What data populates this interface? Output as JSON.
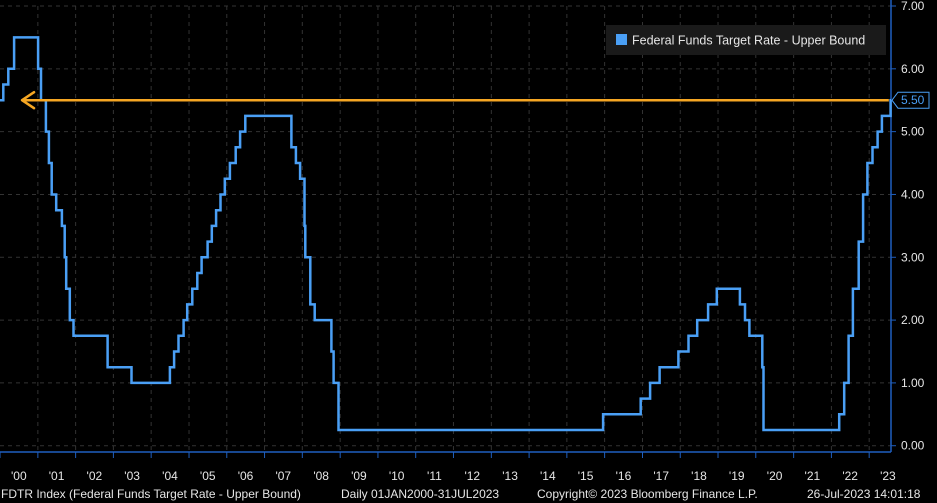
{
  "chart_data": {
    "type": "line",
    "title": "",
    "xlabel": "",
    "ylabel": "",
    "x_range": [
      "2000-01-01",
      "2023-07-31"
    ],
    "ylim": [
      -0.1,
      7.0
    ],
    "y_ticks": [
      "0.00",
      "1.00",
      "2.00",
      "3.00",
      "4.00",
      "5.00",
      "6.00",
      "7.00"
    ],
    "x_tick_labels": [
      {
        "label": "'00",
        "year": 2000
      },
      {
        "label": "'01",
        "year": 2001
      },
      {
        "label": "'02",
        "year": 2002
      },
      {
        "label": "'03",
        "year": 2003
      },
      {
        "label": "'04",
        "year": 2004
      },
      {
        "label": "'05",
        "year": 2005
      },
      {
        "label": "'06",
        "year": 2006
      },
      {
        "label": "'07",
        "year": 2007
      },
      {
        "label": "'08",
        "year": 2008
      },
      {
        "label": "'09",
        "year": 2009
      },
      {
        "label": "'10",
        "year": 2010
      },
      {
        "label": "'11",
        "year": 2011
      },
      {
        "label": "'12",
        "year": 2012
      },
      {
        "label": "'13",
        "year": 2013
      },
      {
        "label": "'14",
        "year": 2014
      },
      {
        "label": "'15",
        "year": 2015
      },
      {
        "label": "'16",
        "year": 2016
      },
      {
        "label": "'17",
        "year": 2017
      },
      {
        "label": "'18",
        "year": 2018
      },
      {
        "label": "'19",
        "year": 2019
      },
      {
        "label": "'20",
        "year": 2020
      },
      {
        "label": "'21",
        "year": 2021
      },
      {
        "label": "'22",
        "year": 2022
      },
      {
        "label": "'23",
        "year": 2023
      }
    ],
    "grid": "dashed-horizontal",
    "legend": {
      "position": "top-right",
      "entries": [
        "Federal Funds Target Rate - Upper Bound"
      ]
    },
    "series": [
      {
        "name": "Federal Funds Target Rate - Upper Bound",
        "color": "#4a9ff5",
        "step": true,
        "points": [
          {
            "date": "2000-01-01",
            "value": 5.5
          },
          {
            "date": "2000-02-02",
            "value": 5.75
          },
          {
            "date": "2000-03-21",
            "value": 6.0
          },
          {
            "date": "2000-05-16",
            "value": 6.5
          },
          {
            "date": "2001-01-03",
            "value": 6.0
          },
          {
            "date": "2001-01-31",
            "value": 5.5
          },
          {
            "date": "2001-03-20",
            "value": 5.0
          },
          {
            "date": "2001-04-18",
            "value": 4.5
          },
          {
            "date": "2001-05-15",
            "value": 4.0
          },
          {
            "date": "2001-06-27",
            "value": 3.75
          },
          {
            "date": "2001-08-21",
            "value": 3.5
          },
          {
            "date": "2001-09-17",
            "value": 3.0
          },
          {
            "date": "2001-10-02",
            "value": 2.5
          },
          {
            "date": "2001-11-06",
            "value": 2.0
          },
          {
            "date": "2001-12-11",
            "value": 1.75
          },
          {
            "date": "2002-11-06",
            "value": 1.25
          },
          {
            "date": "2003-06-25",
            "value": 1.0
          },
          {
            "date": "2004-06-30",
            "value": 1.25
          },
          {
            "date": "2004-08-10",
            "value": 1.5
          },
          {
            "date": "2004-09-21",
            "value": 1.75
          },
          {
            "date": "2004-11-10",
            "value": 2.0
          },
          {
            "date": "2004-12-14",
            "value": 2.25
          },
          {
            "date": "2005-02-02",
            "value": 2.5
          },
          {
            "date": "2005-03-22",
            "value": 2.75
          },
          {
            "date": "2005-05-03",
            "value": 3.0
          },
          {
            "date": "2005-06-30",
            "value": 3.25
          },
          {
            "date": "2005-08-09",
            "value": 3.5
          },
          {
            "date": "2005-09-20",
            "value": 3.75
          },
          {
            "date": "2005-11-01",
            "value": 4.0
          },
          {
            "date": "2005-12-13",
            "value": 4.25
          },
          {
            "date": "2006-01-31",
            "value": 4.5
          },
          {
            "date": "2006-03-28",
            "value": 4.75
          },
          {
            "date": "2006-05-10",
            "value": 5.0
          },
          {
            "date": "2006-06-29",
            "value": 5.25
          },
          {
            "date": "2007-09-18",
            "value": 4.75
          },
          {
            "date": "2007-10-31",
            "value": 4.5
          },
          {
            "date": "2007-12-11",
            "value": 4.25
          },
          {
            "date": "2008-01-22",
            "value": 3.5
          },
          {
            "date": "2008-01-30",
            "value": 3.0
          },
          {
            "date": "2008-03-18",
            "value": 2.25
          },
          {
            "date": "2008-04-30",
            "value": 2.0
          },
          {
            "date": "2008-10-08",
            "value": 1.5
          },
          {
            "date": "2008-10-29",
            "value": 1.0
          },
          {
            "date": "2008-12-16",
            "value": 0.25
          },
          {
            "date": "2015-12-17",
            "value": 0.5
          },
          {
            "date": "2016-12-15",
            "value": 0.75
          },
          {
            "date": "2017-03-16",
            "value": 1.0
          },
          {
            "date": "2017-06-15",
            "value": 1.25
          },
          {
            "date": "2017-12-14",
            "value": 1.5
          },
          {
            "date": "2018-03-22",
            "value": 1.75
          },
          {
            "date": "2018-06-14",
            "value": 2.0
          },
          {
            "date": "2018-09-27",
            "value": 2.25
          },
          {
            "date": "2018-12-20",
            "value": 2.5
          },
          {
            "date": "2019-08-01",
            "value": 2.25
          },
          {
            "date": "2019-09-19",
            "value": 2.0
          },
          {
            "date": "2019-10-31",
            "value": 1.75
          },
          {
            "date": "2020-03-04",
            "value": 1.25
          },
          {
            "date": "2020-03-16",
            "value": 0.25
          },
          {
            "date": "2022-03-17",
            "value": 0.5
          },
          {
            "date": "2022-05-05",
            "value": 1.0
          },
          {
            "date": "2022-06-16",
            "value": 1.75
          },
          {
            "date": "2022-07-28",
            "value": 2.5
          },
          {
            "date": "2022-09-22",
            "value": 3.25
          },
          {
            "date": "2022-11-03",
            "value": 4.0
          },
          {
            "date": "2022-12-15",
            "value": 4.5
          },
          {
            "date": "2023-02-02",
            "value": 4.75
          },
          {
            "date": "2023-03-23",
            "value": 5.0
          },
          {
            "date": "2023-05-04",
            "value": 5.25
          },
          {
            "date": "2023-07-27",
            "value": 5.5
          },
          {
            "date": "2023-07-31",
            "value": 5.5
          }
        ]
      }
    ],
    "last_value_label": {
      "text": "5.50",
      "value": 5.5,
      "color": "#4a9ff5"
    },
    "annotations": [
      {
        "type": "arrow",
        "color": "#f5a623",
        "from_date": "2023-07-10",
        "to_date": "2000-08-01",
        "value": 5.5
      }
    ],
    "colors": {
      "background": "#000000",
      "axis": "#1f5fbf",
      "grid": "#333333",
      "tick_text": "#e6e6e6",
      "legend_background": "#1a1a1a"
    }
  },
  "footer": {
    "index_label": "FDTR Index (Federal Funds Target Rate - Upper Bound)",
    "range_label": "Daily 01JAN2000-31JUL2023",
    "copyright": "Copyright© 2023 Bloomberg Finance L.P.",
    "timestamp": "26-Jul-2023 14:01:18"
  }
}
